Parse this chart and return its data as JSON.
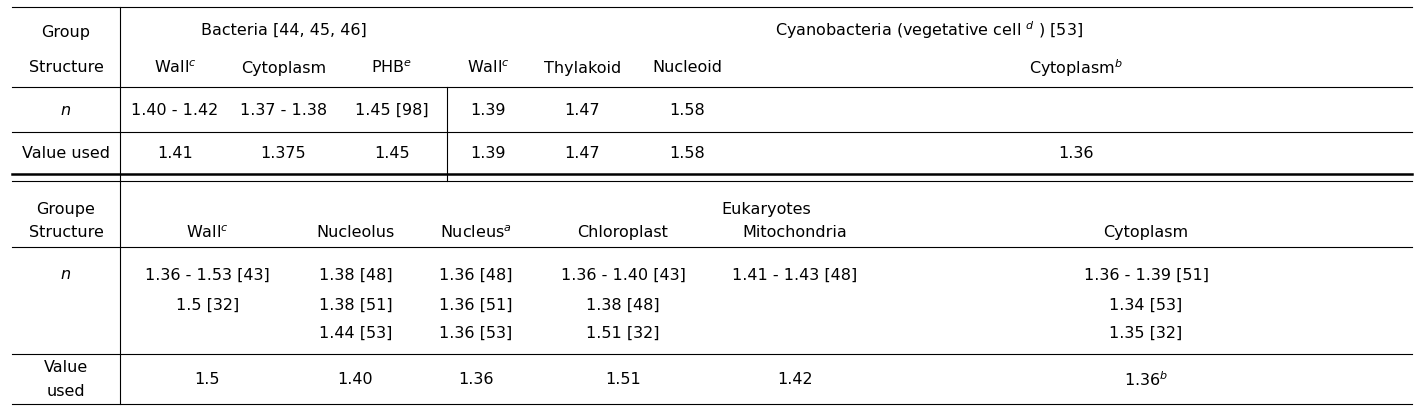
{
  "figsize": [
    14.24,
    4.1
  ],
  "dpi": 100,
  "background": "white",
  "top_section": {
    "col0_row1": "Group",
    "col0_row2": "Structure",
    "bacteria_header": "Bacteria [44, 45, 46]",
    "bacteria_subheaders": [
      "Wall$^c$",
      "Cytoplasm",
      "PHB$^e$"
    ],
    "cyano_header": "Cyanobacteria (vegetative cell $^d$ ) [53]",
    "cyano_subheaders": [
      "Wall$^c$",
      "Thylakoid",
      "Nucleoid",
      "Cytoplasm$^b$"
    ],
    "n_label": "$n$",
    "n_bacteria": [
      "1.40 - 1.42",
      "1.37 - 1.38",
      "1.45 [98]"
    ],
    "n_cyano": [
      "1.39",
      "1.47",
      "1.58",
      ""
    ],
    "val_label": "Value used",
    "val_bacteria": [
      "1.41",
      "1.375",
      "1.45"
    ],
    "val_cyano": [
      "1.39",
      "1.47",
      "1.58",
      "1.36"
    ]
  },
  "bottom_section": {
    "col0_row1": "Groupe",
    "col0_row2": "Structure",
    "euk_header": "Eukaryotes",
    "euk_subheaders": [
      "Wall$^c$",
      "Nucleolus",
      "Nucleus$^a$",
      "Chloroplast",
      "Mitochondria",
      "Cytoplasm"
    ],
    "n_label": "$n$",
    "n_euk": [
      [
        "1.36 - 1.53 [43]",
        "1.38 [48]",
        "1.36 [48]",
        "1.36 - 1.40 [43]",
        "1.41 - 1.43 [48]",
        "1.36 - 1.39 [51]"
      ],
      [
        "1.5 [32]",
        "1.38 [51]",
        "1.36 [51]",
        "1.38 [48]",
        "",
        "1.34 [53]"
      ],
      [
        "",
        "1.44 [53]",
        "1.36 [53]",
        "1.51 [32]",
        "",
        "1.35 [32]"
      ]
    ],
    "val_label1": "Value",
    "val_label2": "used",
    "val_euk": [
      "1.5",
      "1.40",
      "1.36",
      "1.51",
      "1.42",
      "1.36$^b$"
    ]
  }
}
